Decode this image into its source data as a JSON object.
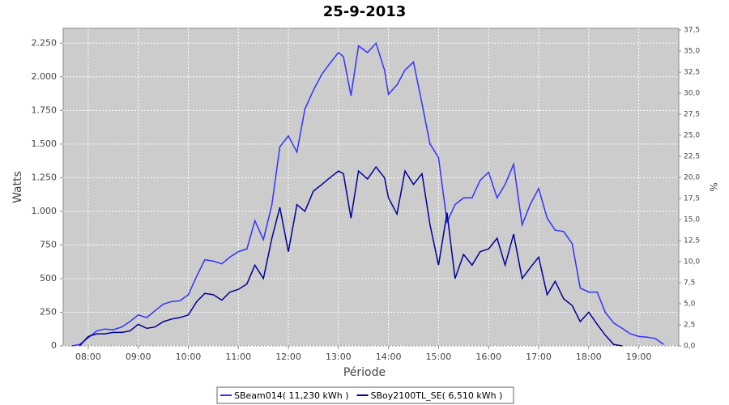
{
  "chart_data": {
    "type": "line",
    "title": "25-9-2013",
    "xlabel": "Période",
    "ylabel": "Watts",
    "y2label": "%",
    "xlim": [
      7.5,
      19.8
    ],
    "ylim": [
      0,
      2360
    ],
    "y2lim": [
      0,
      37.7
    ],
    "grid": true,
    "legend": "bottom",
    "xticks": [
      {
        "value": 8,
        "label": "08:00"
      },
      {
        "value": 9,
        "label": "09:00"
      },
      {
        "value": 10,
        "label": "10:00"
      },
      {
        "value": 11,
        "label": "11:00"
      },
      {
        "value": 12,
        "label": "12:00"
      },
      {
        "value": 13,
        "label": "13:00"
      },
      {
        "value": 14,
        "label": "14:00"
      },
      {
        "value": 15,
        "label": "15:00"
      },
      {
        "value": 16,
        "label": "16:00"
      },
      {
        "value": 17,
        "label": "17:00"
      },
      {
        "value": 18,
        "label": "18:00"
      },
      {
        "value": 19,
        "label": "19:00"
      }
    ],
    "yticks": [
      0,
      250,
      500,
      750,
      {
        "value": 1000,
        "label": "1.000"
      },
      {
        "value": 1250,
        "label": "1.250"
      },
      {
        "value": 1500,
        "label": "1.500"
      },
      {
        "value": 1750,
        "label": "1.750"
      },
      {
        "value": 2000,
        "label": "2.000"
      },
      {
        "value": 2250,
        "label": "2.250"
      }
    ],
    "y2ticks": [
      {
        "value": 0,
        "label": "0,0"
      },
      {
        "value": 2.5,
        "label": "2,5"
      },
      {
        "value": 5,
        "label": "5,0"
      },
      {
        "value": 7.5,
        "label": "7,5"
      },
      {
        "value": 10,
        "label": "10,0"
      },
      {
        "value": 12.5,
        "label": "12,5"
      },
      {
        "value": 15,
        "label": "15,0"
      },
      {
        "value": 17.5,
        "label": "17,5"
      },
      {
        "value": 20,
        "label": "20,0"
      },
      {
        "value": 22.5,
        "label": "22,5"
      },
      {
        "value": 25,
        "label": "25,0"
      },
      {
        "value": 27.5,
        "label": "27,5"
      },
      {
        "value": 30,
        "label": "30,0"
      },
      {
        "value": 32.5,
        "label": "32,5"
      },
      {
        "value": 35,
        "label": "35,0"
      },
      {
        "value": 37.5,
        "label": "37,5"
      }
    ],
    "series": [
      {
        "name": "SBeam014( 11,230 kWh )",
        "color": "#3333ff",
        "x": [
          7.67,
          7.83,
          8.0,
          8.17,
          8.33,
          8.5,
          8.67,
          8.83,
          9.0,
          9.17,
          9.33,
          9.5,
          9.67,
          9.83,
          10.0,
          10.17,
          10.33,
          10.5,
          10.67,
          10.83,
          11.0,
          11.17,
          11.33,
          11.5,
          11.67,
          11.83,
          12.0,
          12.17,
          12.33,
          12.5,
          12.67,
          12.83,
          13.0,
          13.1,
          13.25,
          13.4,
          13.58,
          13.75,
          13.92,
          14.0,
          14.17,
          14.33,
          14.5,
          14.67,
          14.83,
          15.0,
          15.17,
          15.33,
          15.5,
          15.67,
          15.83,
          16.0,
          16.17,
          16.33,
          16.5,
          16.67,
          16.83,
          17.0,
          17.17,
          17.33,
          17.5,
          17.67,
          17.83,
          18.0,
          18.17,
          18.33,
          18.5,
          18.67,
          18.83,
          19.0,
          19.17,
          19.33,
          19.5
        ],
        "values": [
          0,
          10,
          60,
          110,
          125,
          120,
          140,
          180,
          230,
          210,
          260,
          310,
          330,
          335,
          380,
          520,
          640,
          630,
          610,
          660,
          700,
          720,
          930,
          790,
          1050,
          1480,
          1560,
          1440,
          1760,
          1900,
          2020,
          2100,
          2180,
          2150,
          1860,
          2230,
          2180,
          2250,
          2050,
          1870,
          1940,
          2050,
          2110,
          1800,
          1500,
          1400,
          920,
          1050,
          1100,
          1100,
          1230,
          1290,
          1100,
          1200,
          1350,
          900,
          1050,
          1170,
          950,
          860,
          850,
          760,
          430,
          400,
          400,
          250,
          170,
          130,
          90,
          70,
          65,
          55,
          10
        ]
      },
      {
        "name": "SBoy2100TL_SE( 6,510 kWh )",
        "color": "#000099",
        "x": [
          7.83,
          8.0,
          8.17,
          8.33,
          8.5,
          8.67,
          8.83,
          9.0,
          9.17,
          9.33,
          9.5,
          9.67,
          9.83,
          10.0,
          10.17,
          10.33,
          10.5,
          10.67,
          10.83,
          11.0,
          11.17,
          11.33,
          11.5,
          11.67,
          11.83,
          12.0,
          12.17,
          12.33,
          12.5,
          12.67,
          12.83,
          13.0,
          13.1,
          13.25,
          13.4,
          13.58,
          13.75,
          13.92,
          14.0,
          14.17,
          14.33,
          14.5,
          14.67,
          14.83,
          15.0,
          15.17,
          15.33,
          15.5,
          15.67,
          15.83,
          16.0,
          16.17,
          16.33,
          16.5,
          16.67,
          16.83,
          17.0,
          17.17,
          17.33,
          17.5,
          17.67,
          17.83,
          18.0,
          18.17,
          18.33,
          18.5,
          18.67
        ],
        "values": [
          0,
          70,
          90,
          90,
          100,
          100,
          110,
          160,
          130,
          140,
          180,
          200,
          210,
          230,
          330,
          390,
          380,
          340,
          400,
          420,
          460,
          600,
          500,
          800,
          1030,
          700,
          1050,
          1000,
          1150,
          1200,
          1250,
          1300,
          1280,
          950,
          1300,
          1240,
          1330,
          1250,
          1100,
          980,
          1300,
          1200,
          1280,
          900,
          600,
          990,
          500,
          680,
          600,
          700,
          720,
          800,
          600,
          830,
          500,
          580,
          660,
          380,
          480,
          350,
          300,
          180,
          250,
          160,
          80,
          10,
          0
        ]
      }
    ]
  }
}
